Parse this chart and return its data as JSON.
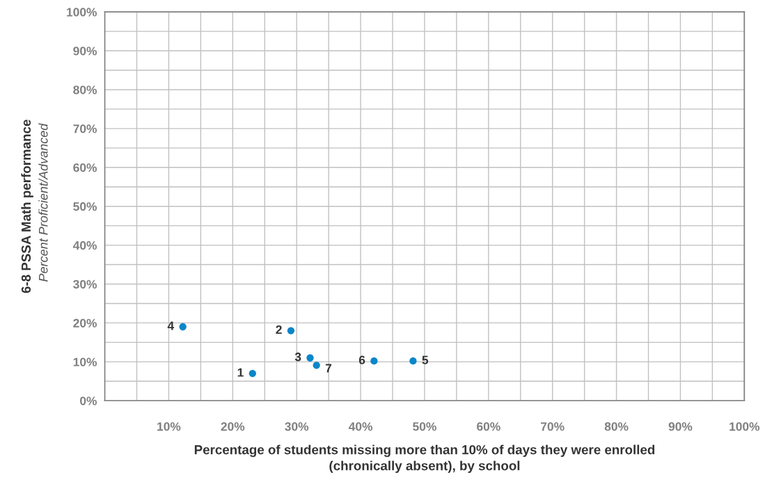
{
  "chart_data": {
    "type": "scatter",
    "xlabel": "Percentage of students missing more than 10% of days they were enrolled\n(chronically absent), by school",
    "ylabel": "6-8 PSSA Math performance",
    "annotations": [
      "Percent Proficient/Advanced",
      {
        "text": "1",
        "x": 23.1,
        "y": 7.0
      },
      {
        "text": "2",
        "x": 29.1,
        "y": 18.0
      },
      {
        "text": "3",
        "x": 32.1,
        "y": 11.0
      },
      {
        "text": "4",
        "x": 12.2,
        "y": 19.0
      },
      {
        "text": "5",
        "x": 48.2,
        "y": 10.2
      },
      {
        "text": "6",
        "x": 42.1,
        "y": 10.2
      },
      {
        "text": "7",
        "x": 33.1,
        "y": 9.1
      }
    ],
    "series": [
      {
        "color": "#0a86c9",
        "x": [
          23.1,
          29.1,
          32.1,
          12.2,
          48.2,
          42.1,
          33.1
        ],
        "values": [
          7.0,
          18.0,
          11.0,
          19.0,
          10.2,
          10.2,
          9.1
        ]
      }
    ],
    "xlim": [
      0,
      100
    ],
    "ylim": [
      0,
      100
    ],
    "xticks": [
      {
        "value": 5,
        "label": null
      },
      {
        "value": 10,
        "label": "10%"
      },
      {
        "value": 15,
        "label": null
      },
      {
        "value": 20,
        "label": "20%"
      },
      {
        "value": 25,
        "label": null
      },
      {
        "value": 30,
        "label": "30%"
      },
      {
        "value": 35,
        "label": null
      },
      {
        "value": 40,
        "label": "40%"
      },
      {
        "value": 45,
        "label": null
      },
      {
        "value": 50,
        "label": "50%"
      },
      {
        "value": 55,
        "label": null
      },
      {
        "value": 60,
        "label": "60%"
      },
      {
        "value": 65,
        "label": null
      },
      {
        "value": 70,
        "label": "70%"
      },
      {
        "value": 75,
        "label": null
      },
      {
        "value": 80,
        "label": "80%"
      },
      {
        "value": 85,
        "label": null
      },
      {
        "value": 90,
        "label": "90%"
      },
      {
        "value": 95,
        "label": null
      },
      {
        "value": 100,
        "label": "100%"
      }
    ],
    "yticks": [
      {
        "value": 0,
        "label": "0%"
      },
      {
        "value": 5,
        "label": null
      },
      {
        "value": 10,
        "label": "10%"
      },
      {
        "value": 15,
        "label": null
      },
      {
        "value": 20,
        "label": "20%"
      },
      {
        "value": 25,
        "label": null
      },
      {
        "value": 30,
        "label": "30%"
      },
      {
        "value": 35,
        "label": null
      },
      {
        "value": 40,
        "label": "40%"
      },
      {
        "value": 45,
        "label": null
      },
      {
        "value": 50,
        "label": "50%"
      },
      {
        "value": 55,
        "label": null
      },
      {
        "value": 60,
        "label": "60%"
      },
      {
        "value": 65,
        "label": null
      },
      {
        "value": 70,
        "label": "70%"
      },
      {
        "value": 75,
        "label": null
      },
      {
        "value": 80,
        "label": "80%"
      },
      {
        "value": 85,
        "label": null
      },
      {
        "value": 90,
        "label": "90%"
      },
      {
        "value": 95,
        "label": null
      },
      {
        "value": 100,
        "label": "100%"
      }
    ],
    "grid": true,
    "marker": "circle"
  }
}
